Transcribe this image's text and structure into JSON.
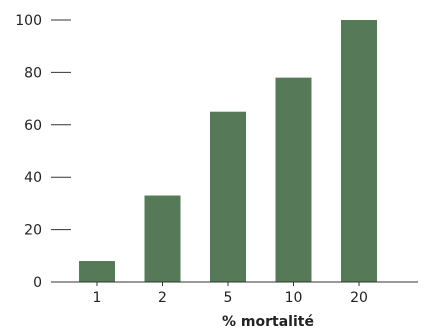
{
  "chart_data": {
    "type": "bar",
    "categories": [
      "1",
      "2",
      "5",
      "10",
      "20"
    ],
    "values": [
      8,
      33,
      65,
      78,
      100
    ],
    "title": "",
    "xlabel": "% mortalité",
    "ylabel": "",
    "ylim": [
      0,
      100
    ],
    "yticks": [
      0,
      20,
      40,
      60,
      80,
      100
    ],
    "grid": false,
    "bar_color": "#567a58",
    "axis_color": "#333333"
  }
}
